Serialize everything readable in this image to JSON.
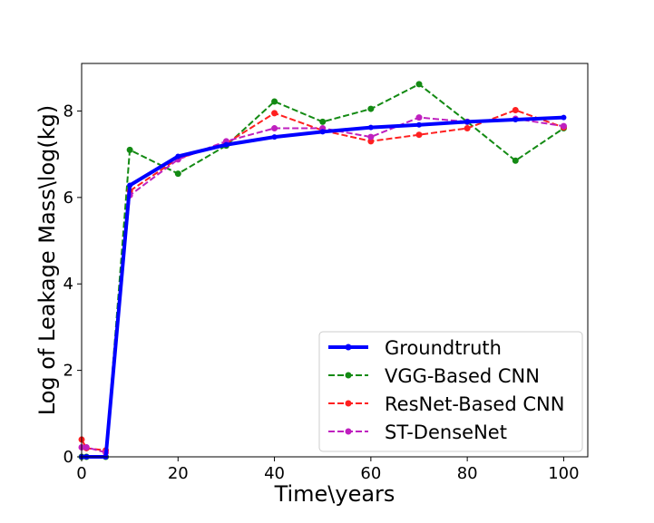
{
  "chart_data": {
    "type": "line",
    "title": "",
    "xlabel": "Time\\years",
    "ylabel": "Log of Leakage Mass\\log(kg)",
    "xlim": [
      0,
      105
    ],
    "ylim": [
      0,
      9.1
    ],
    "xticks": [
      0,
      20,
      40,
      60,
      80,
      100
    ],
    "yticks": [
      0,
      2,
      4,
      6,
      8
    ],
    "grid": false,
    "legend_position": "lower-right",
    "series": [
      {
        "name": "Groundtruth",
        "color": "#0000ff",
        "style": "solid",
        "x": [
          0,
          1,
          5,
          10,
          20,
          30,
          40,
          50,
          60,
          70,
          80,
          90,
          100
        ],
        "y": [
          0.0,
          0.0,
          0.0,
          6.28,
          6.95,
          7.22,
          7.4,
          7.52,
          7.62,
          7.68,
          7.75,
          7.8,
          7.85
        ]
      },
      {
        "name": "VGG-Based CNN",
        "color": "#138a13",
        "style": "dashed",
        "x": [
          0,
          1,
          5,
          10,
          20,
          30,
          40,
          50,
          60,
          70,
          80,
          90,
          100
        ],
        "y": [
          0.0,
          0.0,
          0.0,
          7.1,
          6.55,
          7.2,
          8.22,
          7.75,
          8.05,
          8.62,
          7.75,
          6.85,
          7.6
        ]
      },
      {
        "name": "ResNet-Based CNN",
        "color": "#ff2020",
        "style": "dashed",
        "x": [
          0,
          1,
          5,
          10,
          20,
          30,
          40,
          50,
          60,
          70,
          80,
          90,
          100
        ],
        "y": [
          0.4,
          0.2,
          0.15,
          6.15,
          6.9,
          7.25,
          7.95,
          7.55,
          7.3,
          7.45,
          7.6,
          8.02,
          7.62
        ]
      },
      {
        "name": "ST-DenseNet",
        "color": "#bf1fbf",
        "style": "dashed",
        "x": [
          0,
          1,
          5,
          10,
          20,
          30,
          40,
          50,
          60,
          70,
          80,
          90,
          100
        ],
        "y": [
          0.22,
          0.22,
          0.1,
          6.05,
          6.88,
          7.3,
          7.6,
          7.6,
          7.4,
          7.85,
          7.75,
          7.82,
          7.65
        ]
      }
    ]
  }
}
